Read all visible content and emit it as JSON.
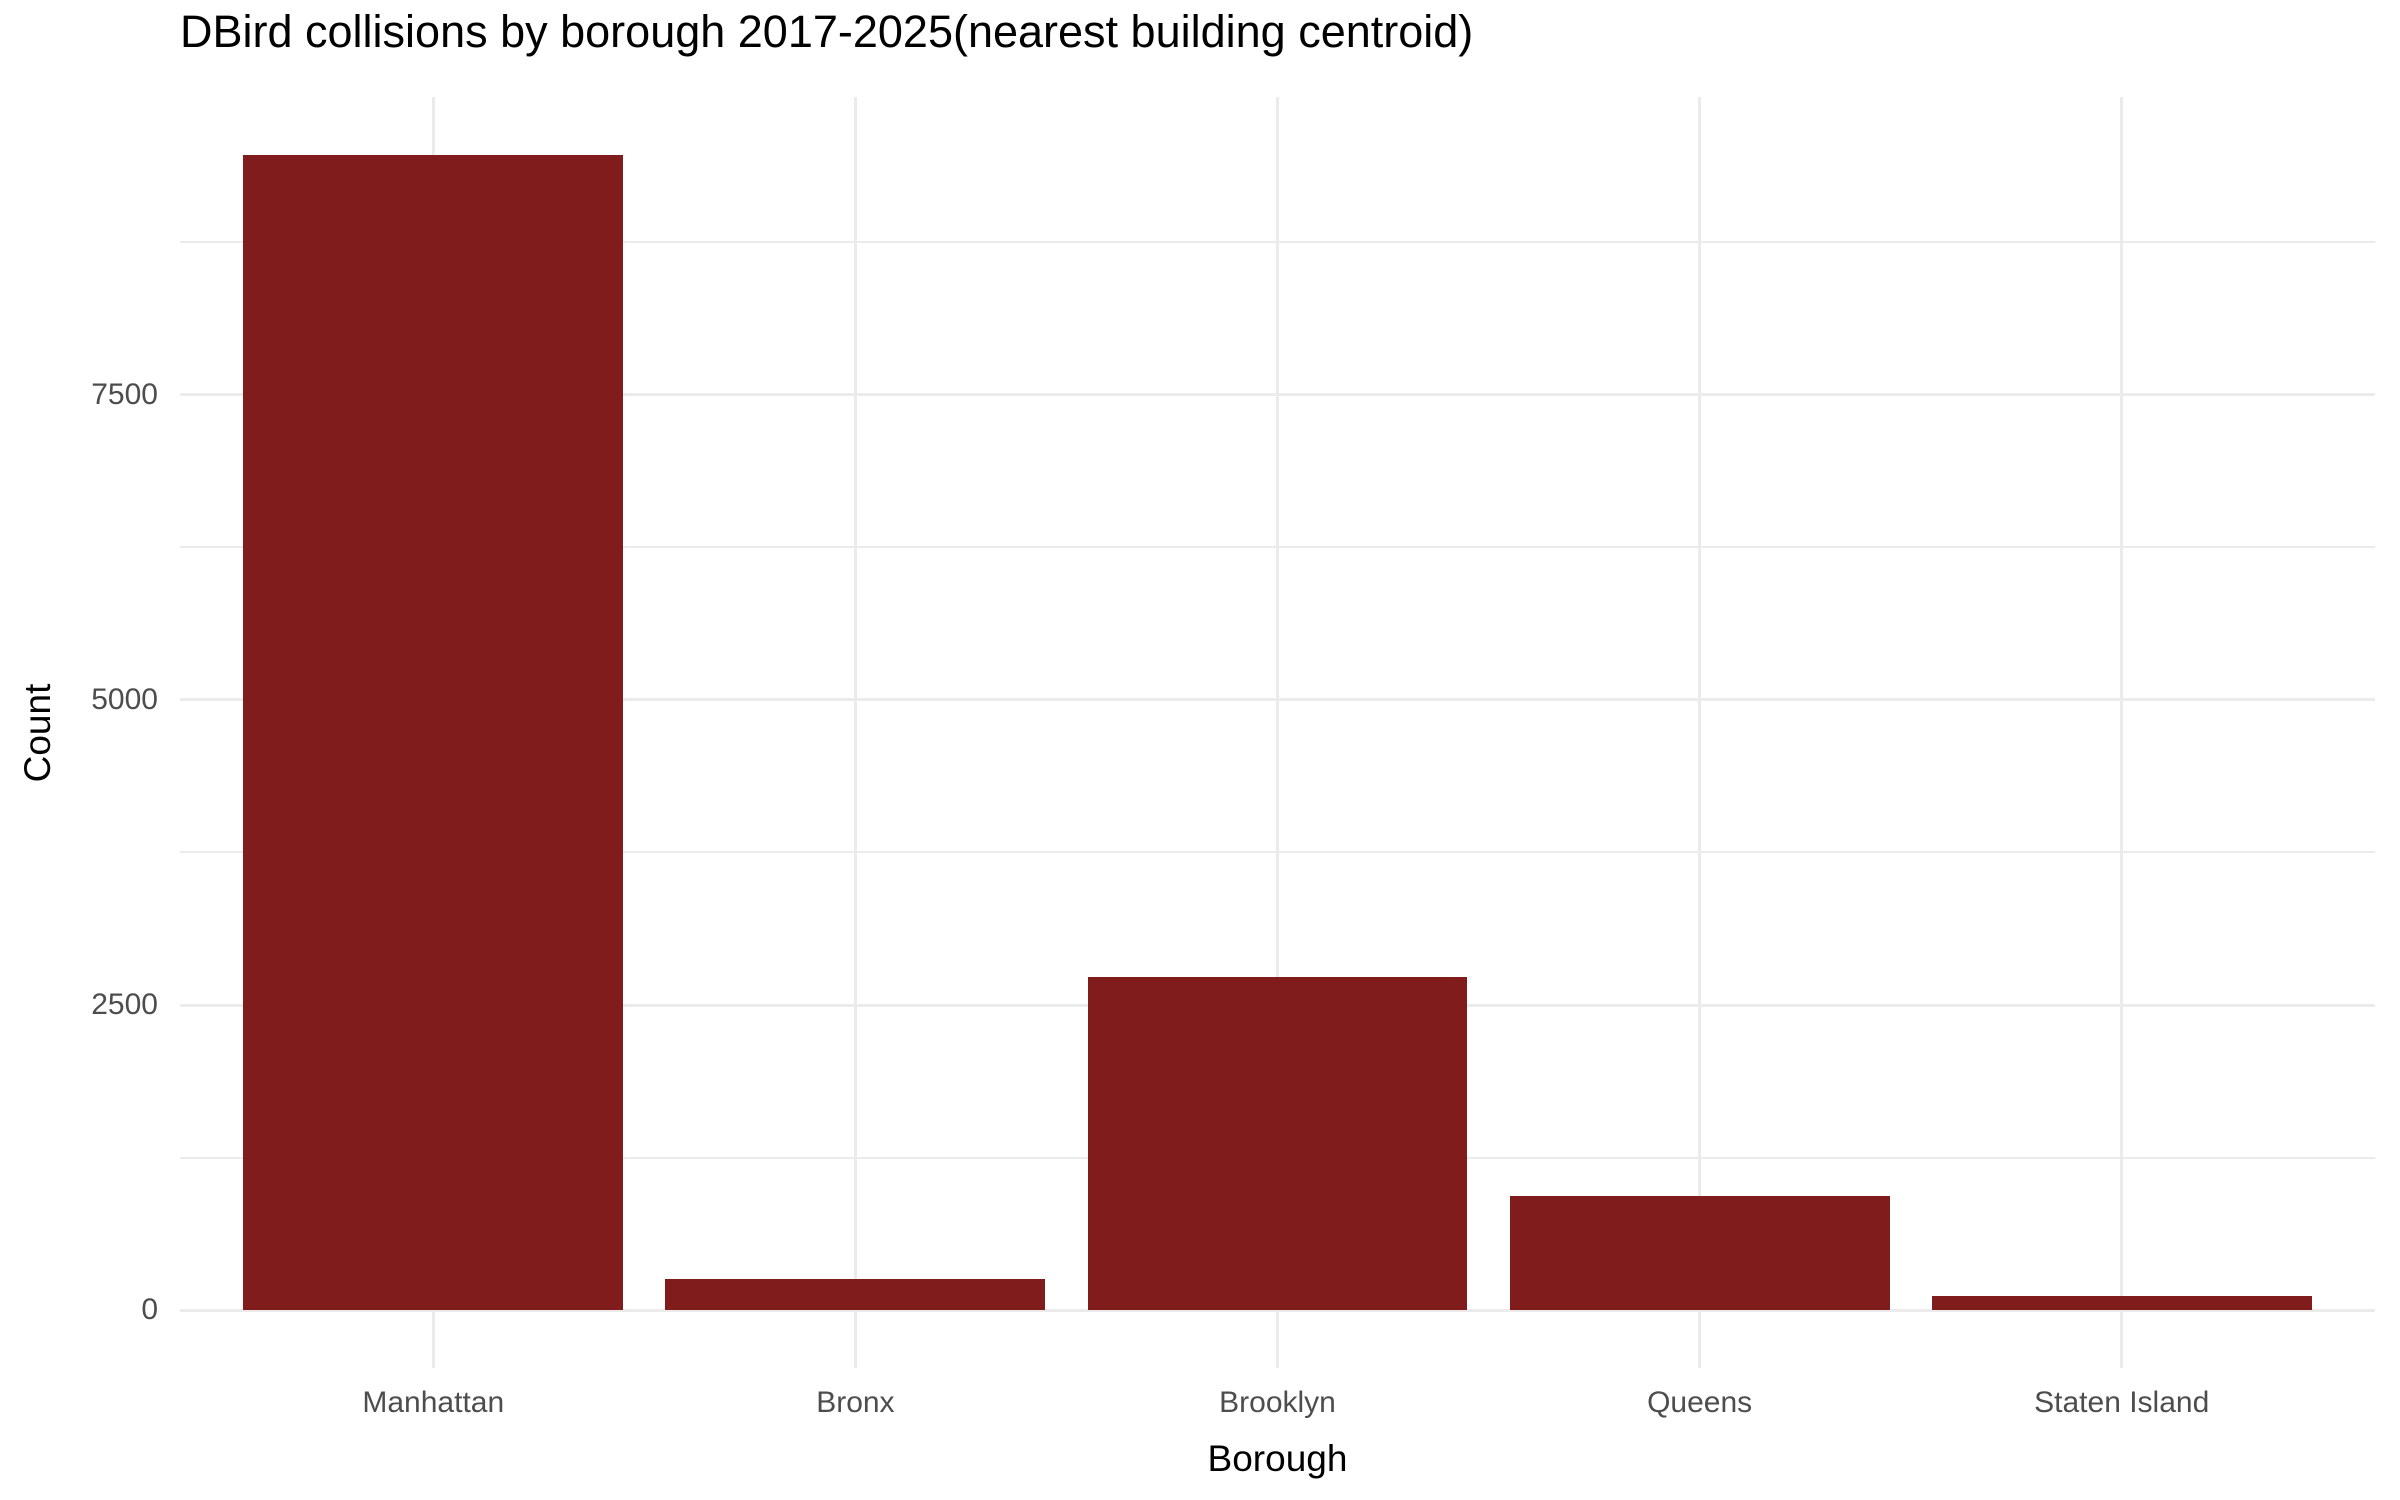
{
  "title": "DBird collisions by borough 2017-2025(nearest building centroid)",
  "chart_data": {
    "type": "bar",
    "title": "DBird collisions by borough 2017-2025(nearest building centroid)",
    "xlabel": "Borough",
    "ylabel": "Count",
    "categories": [
      "Manhattan",
      "Bronx",
      "Brooklyn",
      "Queens",
      "Staten Island"
    ],
    "values": [
      9460,
      260,
      2730,
      940,
      115
    ],
    "y_ticks": [
      0,
      2500,
      5000,
      7500
    ],
    "y_tick_labels": [
      "0",
      "2500",
      "5000",
      "7500"
    ],
    "y_minor_ticks": [
      1250,
      3750,
      6250,
      8750
    ],
    "ylim": [
      -473,
      9939
    ],
    "grid": true,
    "legend": false,
    "colors": {
      "bar_fill": "#811C1C",
      "gridline": "#EBEBEB",
      "tick_label": "#4D4D4D",
      "title_text": "#000000",
      "background": "#FFFFFF"
    },
    "layout": {
      "bar_rel_width": 0.9,
      "x_expand_units": 0.6
    }
  }
}
